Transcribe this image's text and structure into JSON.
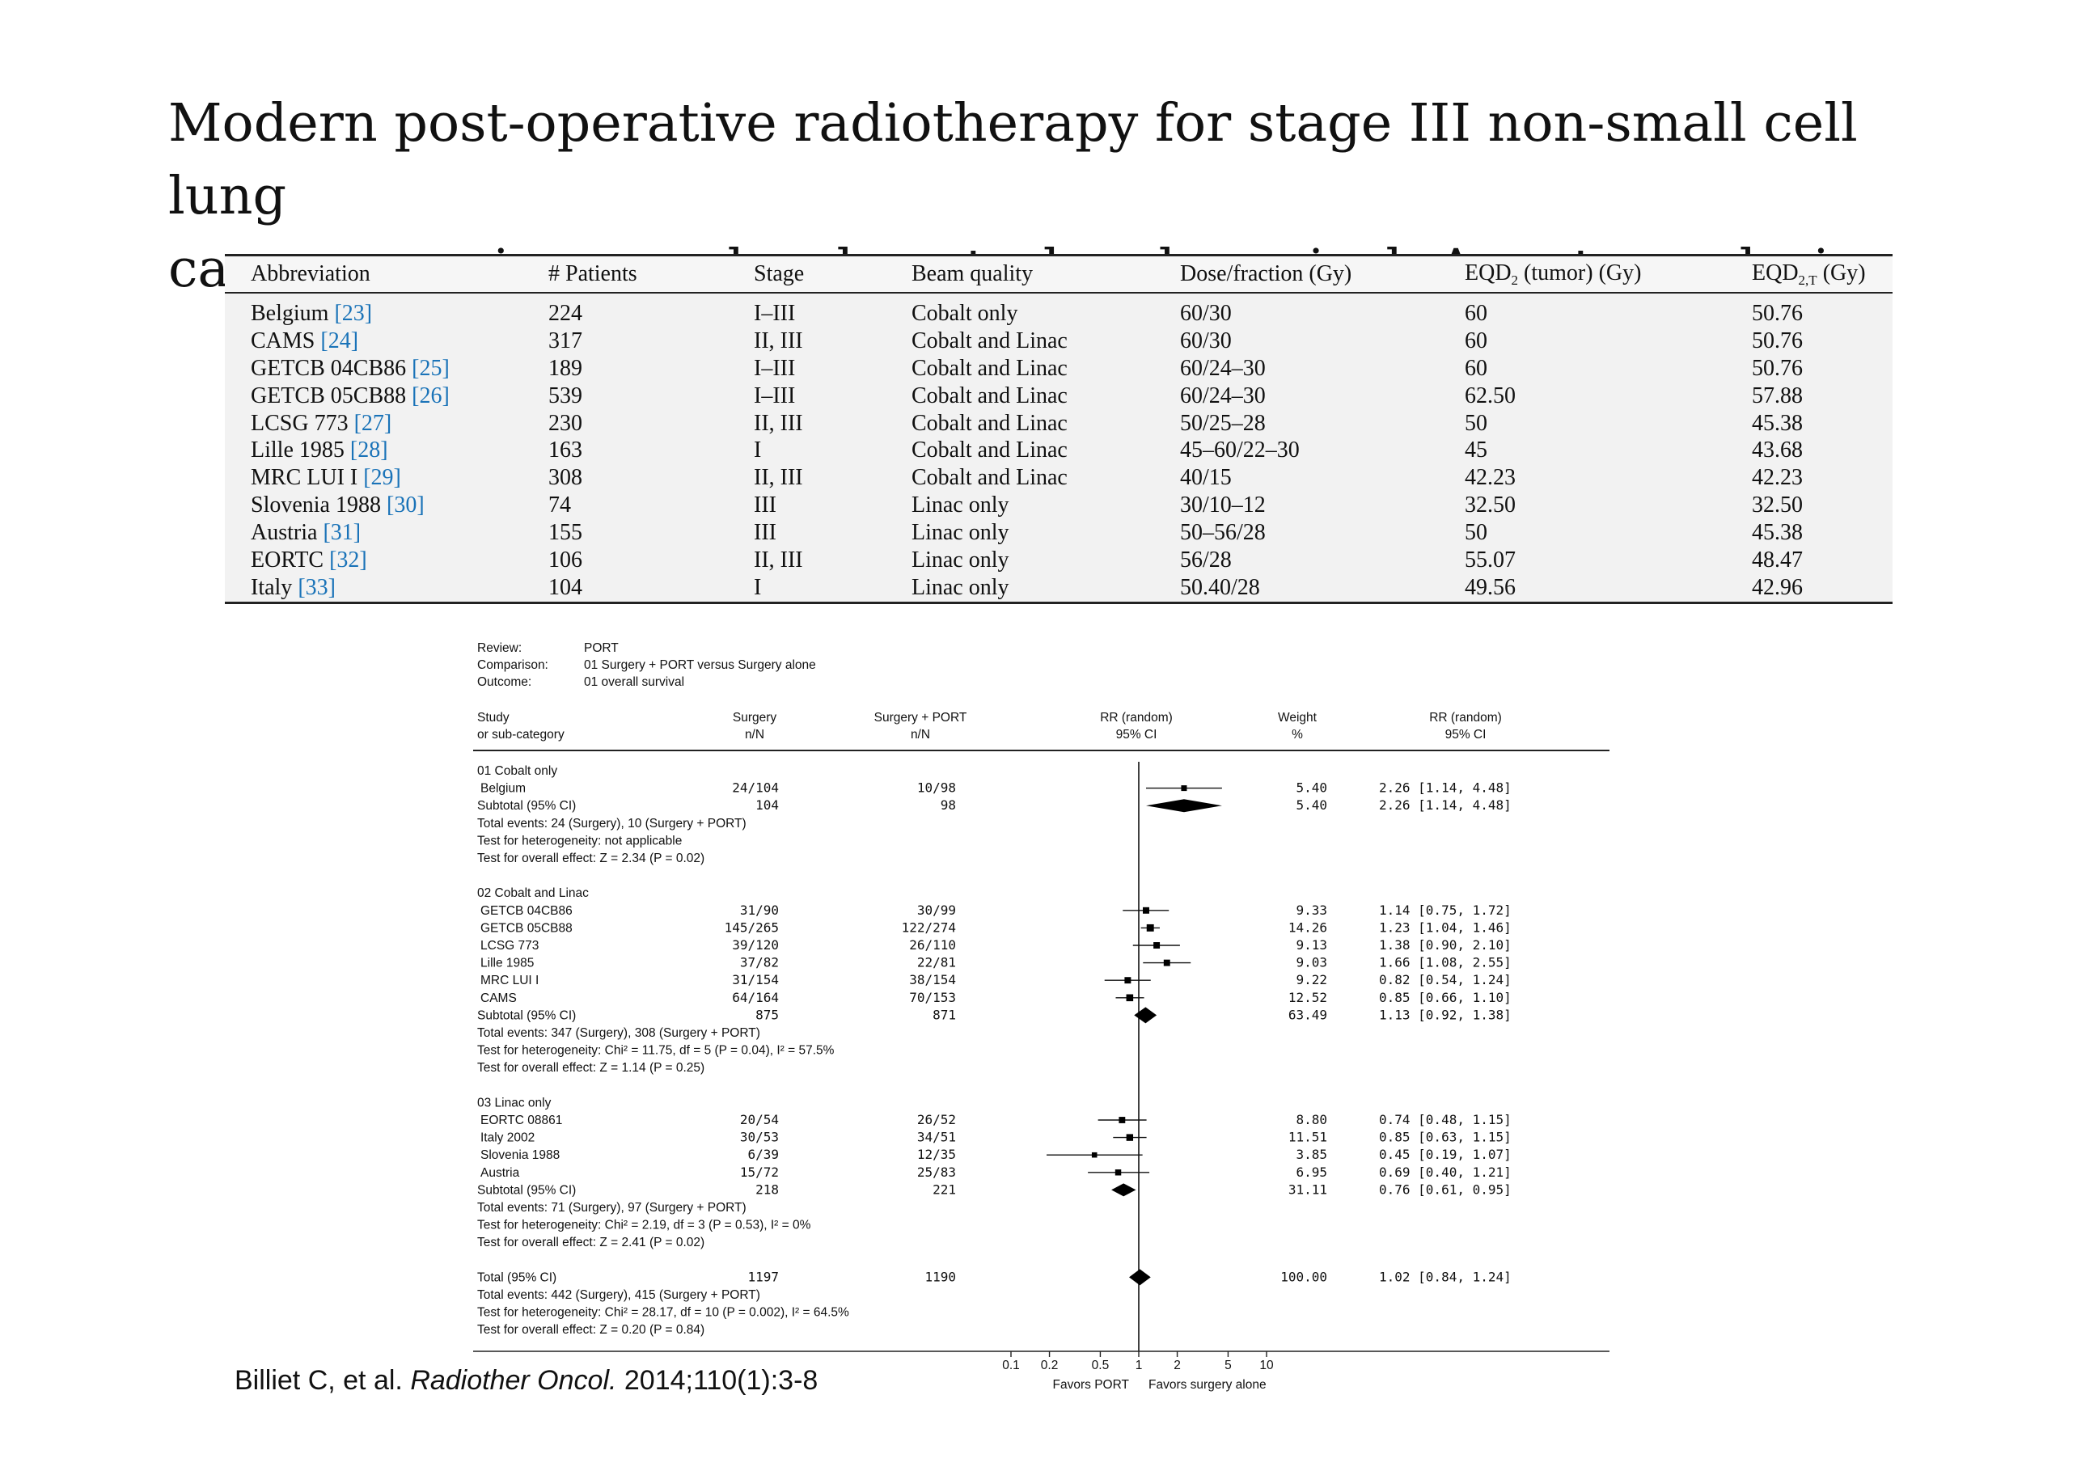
{
  "title": {
    "line1": "Modern post-operative radiotherapy for stage III non-small cell lung",
    "line2": "cancer may improve local control and survival: A meta-analysis"
  },
  "table": {
    "headers": {
      "abbreviation": "Abbreviation",
      "patients": "# Patients",
      "stage": "Stage",
      "beam": "Beam quality",
      "dose": "Dose/fraction (Gy)",
      "eqd2_pre": "EQD",
      "eqd2_sub": "2",
      "eqd2_post": " (tumor) (Gy)",
      "eqd2t_pre": "EQD",
      "eqd2t_sub": "2,T",
      "eqd2t_post": " (Gy)"
    },
    "rows": [
      {
        "name": "Belgium",
        "ref": "[23]",
        "patients": "224",
        "stage": "I–III",
        "beam": "Cobalt only",
        "dose": "60/30",
        "eqd2": "60",
        "eqd2t": "50.76"
      },
      {
        "name": "CAMS",
        "ref": "[24]",
        "patients": "317",
        "stage": "II, III",
        "beam": "Cobalt and Linac",
        "dose": "60/30",
        "eqd2": "60",
        "eqd2t": "50.76"
      },
      {
        "name": "GETCB 04CB86",
        "ref": "[25]",
        "patients": "189",
        "stage": "I–III",
        "beam": "Cobalt and Linac",
        "dose": "60/24–30",
        "eqd2": "60",
        "eqd2t": "50.76"
      },
      {
        "name": "GETCB 05CB88",
        "ref": "[26]",
        "patients": "539",
        "stage": "I–III",
        "beam": "Cobalt and Linac",
        "dose": "60/24–30",
        "eqd2": "62.50",
        "eqd2t": "57.88"
      },
      {
        "name": "LCSG 773",
        "ref": "[27]",
        "patients": "230",
        "stage": "II, III",
        "beam": "Cobalt and Linac",
        "dose": "50/25–28",
        "eqd2": "50",
        "eqd2t": "45.38"
      },
      {
        "name": "Lille 1985",
        "ref": "[28]",
        "patients": "163",
        "stage": "I",
        "beam": "Cobalt and Linac",
        "dose": "45–60/22–30",
        "eqd2": "45",
        "eqd2t": "43.68"
      },
      {
        "name": "MRC LUI I",
        "ref": "[29]",
        "patients": "308",
        "stage": "II, III",
        "beam": "Cobalt and Linac",
        "dose": "40/15",
        "eqd2": "42.23",
        "eqd2t": "42.23"
      },
      {
        "name": "Slovenia 1988",
        "ref": "[30]",
        "patients": "74",
        "stage": "III",
        "beam": "Linac only",
        "dose": "30/10–12",
        "eqd2": "32.50",
        "eqd2t": "32.50"
      },
      {
        "name": "Austria",
        "ref": "[31]",
        "patients": "155",
        "stage": "III",
        "beam": "Linac only",
        "dose": "50–56/28",
        "eqd2": "50",
        "eqd2t": "45.38"
      },
      {
        "name": "EORTC",
        "ref": "[32]",
        "patients": "106",
        "stage": "II, III",
        "beam": "Linac only",
        "dose": "56/28",
        "eqd2": "55.07",
        "eqd2t": "48.47"
      },
      {
        "name": "Italy",
        "ref": "[33]",
        "patients": "104",
        "stage": "I",
        "beam": "Linac only",
        "dose": "50.40/28",
        "eqd2": "49.56",
        "eqd2t": "42.96"
      }
    ]
  },
  "forest": {
    "meta": {
      "review_label": "Review:",
      "review": "PORT",
      "comparison_label": "Comparison:",
      "comparison": "01 Surgery + PORT versus Surgery alone",
      "outcome_label": "Outcome:",
      "outcome": "01 overall survival"
    },
    "columns": {
      "study1": "Study",
      "study2": "or sub-category",
      "surgery1": "Surgery",
      "surgery2": "n/N",
      "port1": "Surgery + PORT",
      "port2": "n/N",
      "rr1": "RR (random)",
      "rr2": "95% CI",
      "weight1": "Weight",
      "weight2": "%",
      "rrci1": "RR (random)",
      "rrci2": "95% CI"
    },
    "groups": [
      {
        "label": "01 Cobalt only",
        "studies": [
          {
            "name": "Belgium",
            "surgery": "24/104",
            "port": "10/98",
            "weight": "5.40",
            "rr_text": "2.26 [1.14, 4.48]",
            "rr": 2.26,
            "lo": 1.14,
            "hi": 4.48
          }
        ],
        "subtotal": {
          "label": "Subtotal (95% CI)",
          "surgery": "104",
          "port": "98",
          "weight": "5.40",
          "rr_text": "2.26 [1.14, 4.48]",
          "rr": 2.26,
          "lo": 1.14,
          "hi": 4.48
        },
        "notes": [
          "Total events: 24 (Surgery), 10 (Surgery + PORT)",
          "Test for heterogeneity: not applicable",
          "Test for overall effect: Z = 2.34 (P = 0.02)"
        ]
      },
      {
        "label": "02 Cobalt and Linac",
        "studies": [
          {
            "name": "GETCB 04CB86",
            "surgery": "31/90",
            "port": "30/99",
            "weight": "9.33",
            "rr_text": "1.14 [0.75, 1.72]",
            "rr": 1.14,
            "lo": 0.75,
            "hi": 1.72
          },
          {
            "name": "GETCB 05CB88",
            "surgery": "145/265",
            "port": "122/274",
            "weight": "14.26",
            "rr_text": "1.23 [1.04, 1.46]",
            "rr": 1.23,
            "lo": 1.04,
            "hi": 1.46
          },
          {
            "name": "LCSG 773",
            "surgery": "39/120",
            "port": "26/110",
            "weight": "9.13",
            "rr_text": "1.38 [0.90, 2.10]",
            "rr": 1.38,
            "lo": 0.9,
            "hi": 2.1
          },
          {
            "name": "Lille 1985",
            "surgery": "37/82",
            "port": "22/81",
            "weight": "9.03",
            "rr_text": "1.66 [1.08, 2.55]",
            "rr": 1.66,
            "lo": 1.08,
            "hi": 2.55
          },
          {
            "name": "MRC LUI I",
            "surgery": "31/154",
            "port": "38/154",
            "weight": "9.22",
            "rr_text": "0.82 [0.54, 1.24]",
            "rr": 0.82,
            "lo": 0.54,
            "hi": 1.24
          },
          {
            "name": "CAMS",
            "surgery": "64/164",
            "port": "70/153",
            "weight": "12.52",
            "rr_text": "0.85 [0.66, 1.10]",
            "rr": 0.85,
            "lo": 0.66,
            "hi": 1.1
          }
        ],
        "subtotal": {
          "label": "Subtotal (95% CI)",
          "surgery": "875",
          "port": "871",
          "weight": "63.49",
          "rr_text": "1.13 [0.92, 1.38]",
          "rr": 1.13,
          "lo": 0.92,
          "hi": 1.38
        },
        "notes": [
          "Total events: 347 (Surgery), 308 (Surgery + PORT)",
          "Test for heterogeneity: Chi² = 11.75, df = 5 (P = 0.04), I² = 57.5%",
          "Test for overall effect: Z = 1.14 (P = 0.25)"
        ]
      },
      {
        "label": "03 Linac only",
        "studies": [
          {
            "name": "EORTC 08861",
            "surgery": "20/54",
            "port": "26/52",
            "weight": "8.80",
            "rr_text": "0.74 [0.48, 1.15]",
            "rr": 0.74,
            "lo": 0.48,
            "hi": 1.15
          },
          {
            "name": "Italy 2002",
            "surgery": "30/53",
            "port": "34/51",
            "weight": "11.51",
            "rr_text": "0.85 [0.63, 1.15]",
            "rr": 0.85,
            "lo": 0.63,
            "hi": 1.15
          },
          {
            "name": "Slovenia 1988",
            "surgery": "6/39",
            "port": "12/35",
            "weight": "3.85",
            "rr_text": "0.45 [0.19, 1.07]",
            "rr": 0.45,
            "lo": 0.19,
            "hi": 1.07
          },
          {
            "name": "Austria",
            "surgery": "15/72",
            "port": "25/83",
            "weight": "6.95",
            "rr_text": "0.69 [0.40, 1.21]",
            "rr": 0.69,
            "lo": 0.4,
            "hi": 1.21
          }
        ],
        "subtotal": {
          "label": "Subtotal (95% CI)",
          "surgery": "218",
          "port": "221",
          "weight": "31.11",
          "rr_text": "0.76 [0.61, 0.95]",
          "rr": 0.76,
          "lo": 0.61,
          "hi": 0.95
        },
        "notes": [
          "Total events: 71 (Surgery), 97 (Surgery + PORT)",
          "Test for heterogeneity: Chi² = 2.19, df = 3 (P = 0.53), I² = 0%",
          "Test for overall effect: Z = 2.41 (P = 0.02)"
        ]
      }
    ],
    "total": {
      "label": "Total (95% CI)",
      "surgery": "1197",
      "port": "1190",
      "weight": "100.00",
      "rr_text": "1.02 [0.84, 1.24]",
      "rr": 1.02,
      "lo": 0.84,
      "hi": 1.24
    },
    "total_notes": [
      "Total events: 442 (Surgery), 415 (Surgery + PORT)",
      "Test for heterogeneity: Chi² = 28.17, df = 10 (P = 0.002), I² = 64.5%",
      "Test for overall effect: Z = 0.20 (P = 0.84)"
    ],
    "axis": {
      "ticks": [
        0.1,
        0.2,
        0.5,
        1,
        2,
        5,
        10
      ],
      "tick_labels": [
        "0.1",
        "0.2",
        "0.5",
        "1",
        "2",
        "5",
        "10"
      ],
      "scale": "log",
      "favors_left": "Favors PORT",
      "favors_right": "Favors surgery alone"
    }
  },
  "citation": {
    "authors": "Billiet C, et al. ",
    "journal": "Radiother Oncol.",
    "details": " 2014;110(1):3-8"
  }
}
